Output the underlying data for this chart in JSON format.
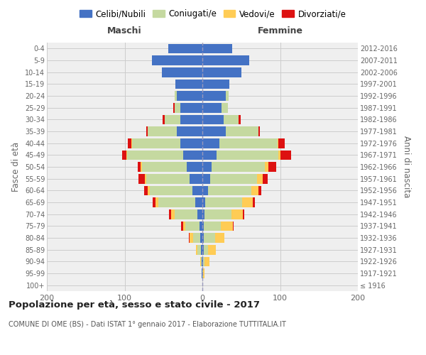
{
  "age_groups": [
    "100+",
    "95-99",
    "90-94",
    "85-89",
    "80-84",
    "75-79",
    "70-74",
    "65-69",
    "60-64",
    "55-59",
    "50-54",
    "45-49",
    "40-44",
    "35-39",
    "30-34",
    "25-29",
    "20-24",
    "15-19",
    "10-14",
    "5-9",
    "0-4"
  ],
  "birth_years": [
    "≤ 1916",
    "1917-1921",
    "1922-1926",
    "1927-1931",
    "1932-1936",
    "1937-1941",
    "1942-1946",
    "1947-1951",
    "1952-1956",
    "1957-1961",
    "1962-1966",
    "1967-1971",
    "1972-1976",
    "1977-1981",
    "1982-1986",
    "1987-1991",
    "1992-1996",
    "1997-2001",
    "2002-2006",
    "2007-2011",
    "2012-2016"
  ],
  "colors": {
    "celibi": "#4472C4",
    "coniugati": "#C5D9A0",
    "vedovi": "#FFCC55",
    "divorziati": "#DD1111"
  },
  "maschi": {
    "celibi": [
      0,
      1,
      1,
      2,
      3,
      4,
      6,
      9,
      13,
      16,
      20,
      25,
      28,
      33,
      28,
      28,
      33,
      35,
      52,
      65,
      44
    ],
    "coniugati": [
      0,
      0,
      1,
      4,
      9,
      18,
      30,
      48,
      55,
      56,
      58,
      72,
      62,
      37,
      20,
      8,
      3,
      0,
      0,
      0,
      0
    ],
    "vedovi": [
      0,
      0,
      1,
      2,
      4,
      3,
      4,
      3,
      2,
      2,
      1,
      1,
      1,
      0,
      0,
      0,
      0,
      0,
      0,
      0,
      0
    ],
    "divorziati": [
      0,
      0,
      0,
      0,
      1,
      2,
      3,
      4,
      5,
      8,
      4,
      5,
      5,
      2,
      3,
      1,
      0,
      0,
      0,
      0,
      0
    ]
  },
  "femmine": {
    "celibi": [
      0,
      0,
      1,
      2,
      2,
      2,
      3,
      4,
      7,
      10,
      12,
      18,
      22,
      30,
      27,
      25,
      30,
      35,
      50,
      60,
      38
    ],
    "coniugati": [
      0,
      1,
      2,
      5,
      14,
      22,
      34,
      47,
      56,
      60,
      68,
      80,
      75,
      42,
      20,
      8,
      4,
      0,
      0,
      0,
      0
    ],
    "vedovi": [
      0,
      2,
      6,
      10,
      12,
      15,
      15,
      14,
      9,
      8,
      5,
      2,
      1,
      0,
      0,
      0,
      0,
      0,
      0,
      0,
      0
    ],
    "divorziati": [
      0,
      0,
      0,
      0,
      0,
      1,
      2,
      3,
      4,
      6,
      10,
      14,
      8,
      2,
      2,
      0,
      0,
      0,
      0,
      0,
      0
    ]
  },
  "title": "Popolazione per età, sesso e stato civile - 2017",
  "subtitle": "COMUNE DI OME (BS) - Dati ISTAT 1° gennaio 2017 - Elaborazione TUTTITALIA.IT",
  "xlabel_left": "Maschi",
  "xlabel_right": "Femmine",
  "ylabel_left": "Fasce di età",
  "ylabel_right": "Anni di nascita",
  "xlim": 200,
  "bg_color": "#FFFFFF",
  "plot_bg_color": "#EFEFEF",
  "grid_color": "#CCCCCC",
  "legend_labels": [
    "Celibi/Nubili",
    "Coniugati/e",
    "Vedovi/e",
    "Divorziati/e"
  ]
}
